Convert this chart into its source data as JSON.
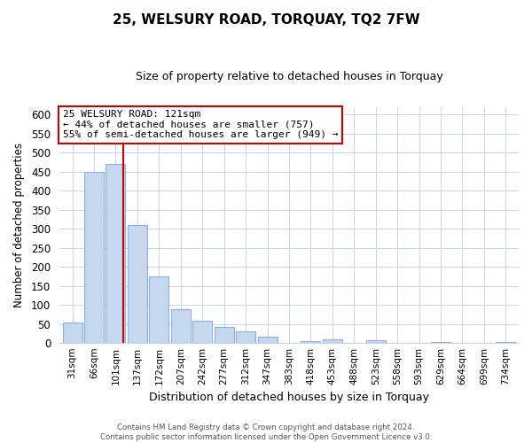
{
  "title": "25, WELSURY ROAD, TORQUAY, TQ2 7FW",
  "subtitle": "Size of property relative to detached houses in Torquay",
  "xlabel": "Distribution of detached houses by size in Torquay",
  "ylabel": "Number of detached properties",
  "bar_labels": [
    "31sqm",
    "66sqm",
    "101sqm",
    "137sqm",
    "172sqm",
    "207sqm",
    "242sqm",
    "277sqm",
    "312sqm",
    "347sqm",
    "383sqm",
    "418sqm",
    "453sqm",
    "488sqm",
    "523sqm",
    "558sqm",
    "593sqm",
    "629sqm",
    "664sqm",
    "699sqm",
    "734sqm"
  ],
  "bar_values": [
    55,
    450,
    470,
    310,
    175,
    90,
    58,
    42,
    31,
    16,
    0,
    6,
    10,
    0,
    8,
    0,
    0,
    4,
    0,
    0,
    4
  ],
  "bar_color": "#c5d8f0",
  "bar_edge_color": "#8ab0d8",
  "vline_x": 2.35,
  "vline_color": "#cc0000",
  "ylim": [
    0,
    620
  ],
  "yticks": [
    0,
    50,
    100,
    150,
    200,
    250,
    300,
    350,
    400,
    450,
    500,
    550,
    600
  ],
  "annotation_title": "25 WELSURY ROAD: 121sqm",
  "annotation_line1": "← 44% of detached houses are smaller (757)",
  "annotation_line2": "55% of semi-detached houses are larger (949) →",
  "annotation_box_color": "#ffffff",
  "annotation_box_edge": "#cc0000",
  "footer_line1": "Contains HM Land Registry data © Crown copyright and database right 2024.",
  "footer_line2": "Contains public sector information licensed under the Open Government Licence v3.0.",
  "background_color": "#ffffff",
  "grid_color": "#c8d4e8"
}
